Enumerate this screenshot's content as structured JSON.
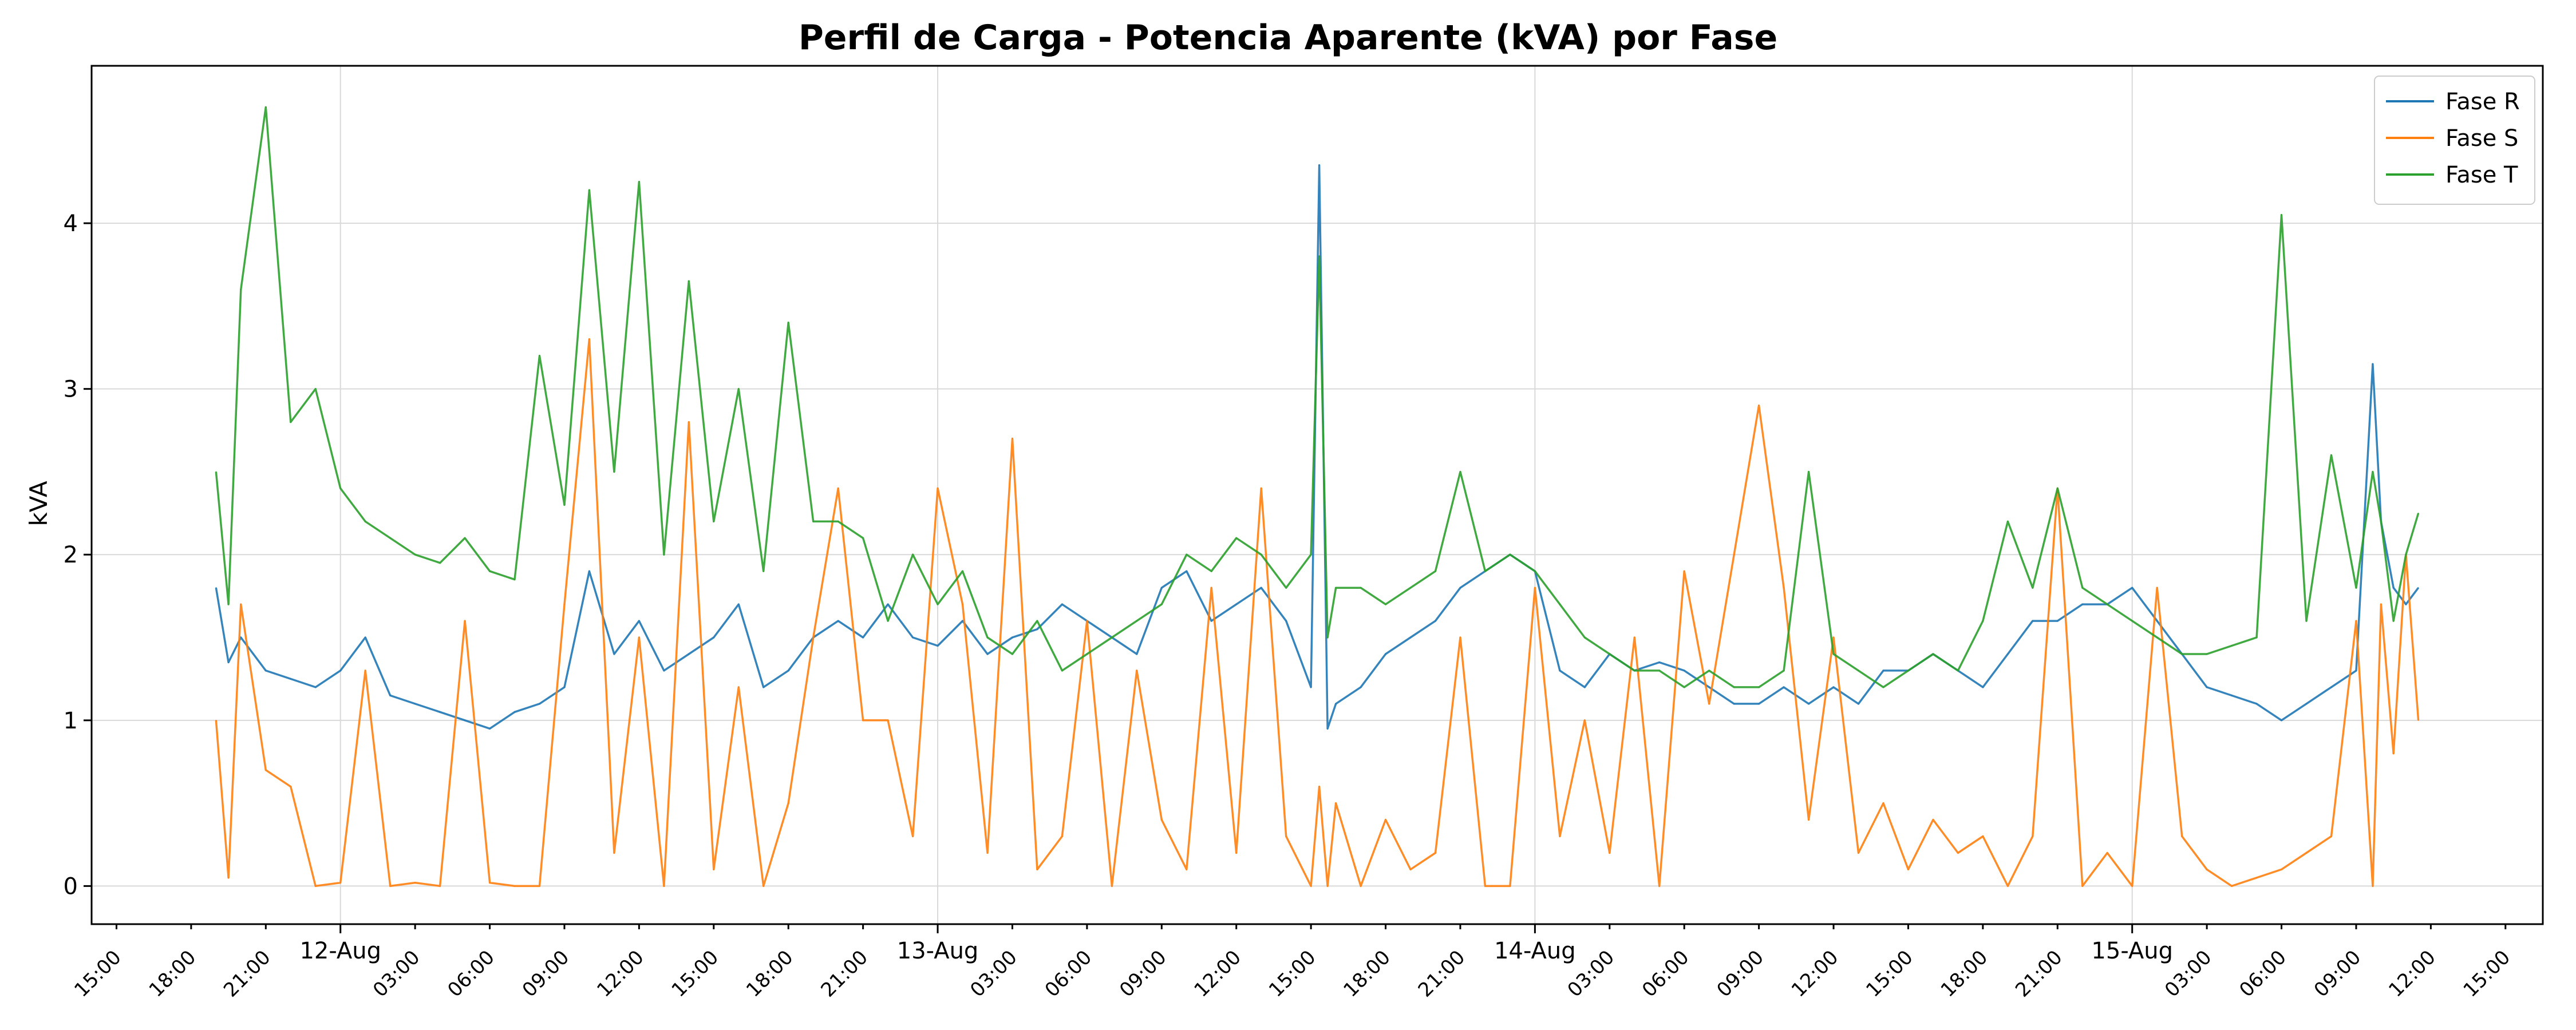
{
  "chart_data": {
    "type": "line",
    "title": "Perfil de Carga - Potencia Aparente (kVA) por Fase",
    "xlabel": "",
    "ylabel": "kVA",
    "ylim": [
      -0.23,
      4.95
    ],
    "xlim": [
      "2024-08-11 14:00",
      "2024-08-15 16:30"
    ],
    "yticks": [
      0,
      1,
      2,
      3,
      4
    ],
    "grid": true,
    "legend_position": "top-right",
    "day_ticks": [
      {
        "t": "2024-08-12 00:00",
        "label": "12-Aug"
      },
      {
        "t": "2024-08-13 00:00",
        "label": "13-Aug"
      },
      {
        "t": "2024-08-14 00:00",
        "label": "14-Aug"
      },
      {
        "t": "2024-08-15 00:00",
        "label": "15-Aug"
      }
    ],
    "hour_ticks": [
      {
        "t": "2024-08-11 15:00",
        "label": "15:00"
      },
      {
        "t": "2024-08-11 18:00",
        "label": "18:00"
      },
      {
        "t": "2024-08-11 21:00",
        "label": "21:00"
      },
      {
        "t": "2024-08-12 03:00",
        "label": "03:00"
      },
      {
        "t": "2024-08-12 06:00",
        "label": "06:00"
      },
      {
        "t": "2024-08-12 09:00",
        "label": "09:00"
      },
      {
        "t": "2024-08-12 12:00",
        "label": "12:00"
      },
      {
        "t": "2024-08-12 15:00",
        "label": "15:00"
      },
      {
        "t": "2024-08-12 18:00",
        "label": "18:00"
      },
      {
        "t": "2024-08-12 21:00",
        "label": "21:00"
      },
      {
        "t": "2024-08-13 03:00",
        "label": "03:00"
      },
      {
        "t": "2024-08-13 06:00",
        "label": "06:00"
      },
      {
        "t": "2024-08-13 09:00",
        "label": "09:00"
      },
      {
        "t": "2024-08-13 12:00",
        "label": "12:00"
      },
      {
        "t": "2024-08-13 15:00",
        "label": "15:00"
      },
      {
        "t": "2024-08-13 18:00",
        "label": "18:00"
      },
      {
        "t": "2024-08-13 21:00",
        "label": "21:00"
      },
      {
        "t": "2024-08-14 03:00",
        "label": "03:00"
      },
      {
        "t": "2024-08-14 06:00",
        "label": "06:00"
      },
      {
        "t": "2024-08-14 09:00",
        "label": "09:00"
      },
      {
        "t": "2024-08-14 12:00",
        "label": "12:00"
      },
      {
        "t": "2024-08-14 15:00",
        "label": "15:00"
      },
      {
        "t": "2024-08-14 18:00",
        "label": "18:00"
      },
      {
        "t": "2024-08-14 21:00",
        "label": "21:00"
      },
      {
        "t": "2024-08-15 03:00",
        "label": "03:00"
      },
      {
        "t": "2024-08-15 06:00",
        "label": "06:00"
      },
      {
        "t": "2024-08-15 09:00",
        "label": "09:00"
      },
      {
        "t": "2024-08-15 12:00",
        "label": "12:00"
      },
      {
        "t": "2024-08-15 15:00",
        "label": "15:00"
      }
    ],
    "series": [
      {
        "name": "Fase R",
        "color": "#1f77b4",
        "x": [
          "2024-08-11 19:00",
          "2024-08-11 19:30",
          "2024-08-11 20:00",
          "2024-08-11 21:00",
          "2024-08-11 22:00",
          "2024-08-11 23:00",
          "2024-08-12 00:00",
          "2024-08-12 01:00",
          "2024-08-12 02:00",
          "2024-08-12 03:00",
          "2024-08-12 04:00",
          "2024-08-12 05:00",
          "2024-08-12 06:00",
          "2024-08-12 07:00",
          "2024-08-12 08:00",
          "2024-08-12 09:00",
          "2024-08-12 10:00",
          "2024-08-12 11:00",
          "2024-08-12 12:00",
          "2024-08-12 13:00",
          "2024-08-12 14:00",
          "2024-08-12 15:00",
          "2024-08-12 16:00",
          "2024-08-12 17:00",
          "2024-08-12 18:00",
          "2024-08-12 19:00",
          "2024-08-12 20:00",
          "2024-08-12 21:00",
          "2024-08-12 22:00",
          "2024-08-12 23:00",
          "2024-08-13 00:00",
          "2024-08-13 01:00",
          "2024-08-13 02:00",
          "2024-08-13 03:00",
          "2024-08-13 04:00",
          "2024-08-13 05:00",
          "2024-08-13 06:00",
          "2024-08-13 07:00",
          "2024-08-13 08:00",
          "2024-08-13 09:00",
          "2024-08-13 10:00",
          "2024-08-13 11:00",
          "2024-08-13 12:00",
          "2024-08-13 13:00",
          "2024-08-13 14:00",
          "2024-08-13 15:00",
          "2024-08-13 15:20",
          "2024-08-13 15:40",
          "2024-08-13 16:00",
          "2024-08-13 17:00",
          "2024-08-13 18:00",
          "2024-08-13 19:00",
          "2024-08-13 20:00",
          "2024-08-13 21:00",
          "2024-08-13 22:00",
          "2024-08-13 23:00",
          "2024-08-14 00:00",
          "2024-08-14 01:00",
          "2024-08-14 02:00",
          "2024-08-14 03:00",
          "2024-08-14 04:00",
          "2024-08-14 05:00",
          "2024-08-14 06:00",
          "2024-08-14 07:00",
          "2024-08-14 08:00",
          "2024-08-14 09:00",
          "2024-08-14 10:00",
          "2024-08-14 11:00",
          "2024-08-14 12:00",
          "2024-08-14 13:00",
          "2024-08-14 14:00",
          "2024-08-14 15:00",
          "2024-08-14 16:00",
          "2024-08-14 17:00",
          "2024-08-14 18:00",
          "2024-08-14 19:00",
          "2024-08-14 20:00",
          "2024-08-14 21:00",
          "2024-08-14 22:00",
          "2024-08-14 23:00",
          "2024-08-15 00:00",
          "2024-08-15 01:00",
          "2024-08-15 02:00",
          "2024-08-15 03:00",
          "2024-08-15 04:00",
          "2024-08-15 05:00",
          "2024-08-15 06:00",
          "2024-08-15 07:00",
          "2024-08-15 08:00",
          "2024-08-15 09:00",
          "2024-08-15 09:40",
          "2024-08-15 10:00",
          "2024-08-15 10:30",
          "2024-08-15 11:00",
          "2024-08-15 11:30"
        ],
        "y": [
          1.8,
          1.35,
          1.5,
          1.3,
          1.25,
          1.2,
          1.3,
          1.5,
          1.15,
          1.1,
          1.05,
          1.0,
          0.95,
          1.05,
          1.1,
          1.2,
          1.9,
          1.4,
          1.6,
          1.3,
          1.4,
          1.5,
          1.7,
          1.2,
          1.3,
          1.5,
          1.6,
          1.5,
          1.7,
          1.5,
          1.45,
          1.6,
          1.4,
          1.5,
          1.55,
          1.7,
          1.6,
          1.5,
          1.4,
          1.8,
          1.9,
          1.6,
          1.7,
          1.8,
          1.6,
          1.2,
          4.35,
          0.95,
          1.1,
          1.2,
          1.4,
          1.5,
          1.6,
          1.8,
          1.9,
          2.0,
          1.9,
          1.3,
          1.2,
          1.4,
          1.3,
          1.35,
          1.3,
          1.2,
          1.1,
          1.1,
          1.2,
          1.1,
          1.2,
          1.1,
          1.3,
          1.3,
          1.4,
          1.3,
          1.2,
          1.4,
          1.6,
          1.6,
          1.7,
          1.7,
          1.8,
          1.6,
          1.4,
          1.2,
          1.15,
          1.1,
          1.0,
          1.1,
          1.2,
          1.3,
          3.15,
          2.2,
          1.8,
          1.7,
          1.8
        ]
      },
      {
        "name": "Fase S",
        "color": "#ff7f0e",
        "x": [
          "2024-08-11 19:00",
          "2024-08-11 19:30",
          "2024-08-11 20:00",
          "2024-08-11 21:00",
          "2024-08-11 22:00",
          "2024-08-11 23:00",
          "2024-08-12 00:00",
          "2024-08-12 01:00",
          "2024-08-12 02:00",
          "2024-08-12 03:00",
          "2024-08-12 04:00",
          "2024-08-12 05:00",
          "2024-08-12 06:00",
          "2024-08-12 07:00",
          "2024-08-12 08:00",
          "2024-08-12 09:00",
          "2024-08-12 10:00",
          "2024-08-12 11:00",
          "2024-08-12 12:00",
          "2024-08-12 13:00",
          "2024-08-12 14:00",
          "2024-08-12 15:00",
          "2024-08-12 16:00",
          "2024-08-12 17:00",
          "2024-08-12 18:00",
          "2024-08-12 19:00",
          "2024-08-12 20:00",
          "2024-08-12 21:00",
          "2024-08-12 22:00",
          "2024-08-12 23:00",
          "2024-08-13 00:00",
          "2024-08-13 01:00",
          "2024-08-13 02:00",
          "2024-08-13 03:00",
          "2024-08-13 04:00",
          "2024-08-13 05:00",
          "2024-08-13 06:00",
          "2024-08-13 07:00",
          "2024-08-13 08:00",
          "2024-08-13 09:00",
          "2024-08-13 10:00",
          "2024-08-13 11:00",
          "2024-08-13 12:00",
          "2024-08-13 13:00",
          "2024-08-13 14:00",
          "2024-08-13 15:00",
          "2024-08-13 15:20",
          "2024-08-13 15:40",
          "2024-08-13 16:00",
          "2024-08-13 17:00",
          "2024-08-13 18:00",
          "2024-08-13 19:00",
          "2024-08-13 20:00",
          "2024-08-13 21:00",
          "2024-08-13 22:00",
          "2024-08-13 23:00",
          "2024-08-14 00:00",
          "2024-08-14 01:00",
          "2024-08-14 02:00",
          "2024-08-14 03:00",
          "2024-08-14 04:00",
          "2024-08-14 05:00",
          "2024-08-14 06:00",
          "2024-08-14 07:00",
          "2024-08-14 08:00",
          "2024-08-14 09:00",
          "2024-08-14 10:00",
          "2024-08-14 11:00",
          "2024-08-14 12:00",
          "2024-08-14 13:00",
          "2024-08-14 14:00",
          "2024-08-14 15:00",
          "2024-08-14 16:00",
          "2024-08-14 17:00",
          "2024-08-14 18:00",
          "2024-08-14 19:00",
          "2024-08-14 20:00",
          "2024-08-14 21:00",
          "2024-08-14 22:00",
          "2024-08-14 23:00",
          "2024-08-15 00:00",
          "2024-08-15 01:00",
          "2024-08-15 02:00",
          "2024-08-15 03:00",
          "2024-08-15 04:00",
          "2024-08-15 05:00",
          "2024-08-15 06:00",
          "2024-08-15 07:00",
          "2024-08-15 08:00",
          "2024-08-15 09:00",
          "2024-08-15 09:40",
          "2024-08-15 10:00",
          "2024-08-15 10:30",
          "2024-08-15 11:00",
          "2024-08-15 11:30"
        ],
        "y": [
          1.0,
          0.05,
          1.7,
          0.7,
          0.6,
          0.0,
          0.02,
          1.3,
          0.0,
          0.02,
          0.0,
          1.6,
          0.02,
          0.0,
          0.0,
          1.7,
          3.3,
          0.2,
          1.5,
          0.0,
          2.8,
          0.1,
          1.2,
          0.0,
          0.5,
          1.5,
          2.4,
          1.0,
          1.0,
          0.3,
          2.4,
          1.7,
          0.2,
          2.7,
          0.1,
          0.3,
          1.6,
          0.0,
          1.3,
          0.4,
          0.1,
          1.8,
          0.2,
          2.4,
          0.3,
          0.0,
          0.6,
          0.0,
          0.5,
          0.0,
          0.4,
          0.1,
          0.2,
          1.5,
          0.0,
          0.0,
          1.8,
          0.3,
          1.0,
          0.2,
          1.5,
          0.0,
          1.9,
          1.1,
          2.0,
          2.9,
          1.8,
          0.4,
          1.5,
          0.2,
          0.5,
          0.1,
          0.4,
          0.2,
          0.3,
          0.0,
          0.3,
          2.4,
          0.0,
          0.2,
          0.0,
          1.8,
          0.3,
          0.1,
          0.0,
          0.05,
          0.1,
          0.2,
          0.3,
          1.6,
          0.0,
          1.7,
          0.8,
          2.0,
          1.0
        ]
      },
      {
        "name": "Fase T",
        "color": "#2ca02c",
        "x": [
          "2024-08-11 19:00",
          "2024-08-11 19:30",
          "2024-08-11 20:00",
          "2024-08-11 21:00",
          "2024-08-11 22:00",
          "2024-08-11 23:00",
          "2024-08-12 00:00",
          "2024-08-12 01:00",
          "2024-08-12 02:00",
          "2024-08-12 03:00",
          "2024-08-12 04:00",
          "2024-08-12 05:00",
          "2024-08-12 06:00",
          "2024-08-12 07:00",
          "2024-08-12 08:00",
          "2024-08-12 09:00",
          "2024-08-12 10:00",
          "2024-08-12 11:00",
          "2024-08-12 12:00",
          "2024-08-12 13:00",
          "2024-08-12 14:00",
          "2024-08-12 15:00",
          "2024-08-12 16:00",
          "2024-08-12 17:00",
          "2024-08-12 18:00",
          "2024-08-12 19:00",
          "2024-08-12 20:00",
          "2024-08-12 21:00",
          "2024-08-12 22:00",
          "2024-08-12 23:00",
          "2024-08-13 00:00",
          "2024-08-13 01:00",
          "2024-08-13 02:00",
          "2024-08-13 03:00",
          "2024-08-13 04:00",
          "2024-08-13 05:00",
          "2024-08-13 06:00",
          "2024-08-13 07:00",
          "2024-08-13 08:00",
          "2024-08-13 09:00",
          "2024-08-13 10:00",
          "2024-08-13 11:00",
          "2024-08-13 12:00",
          "2024-08-13 13:00",
          "2024-08-13 14:00",
          "2024-08-13 15:00",
          "2024-08-13 15:20",
          "2024-08-13 15:40",
          "2024-08-13 16:00",
          "2024-08-13 17:00",
          "2024-08-13 18:00",
          "2024-08-13 19:00",
          "2024-08-13 20:00",
          "2024-08-13 21:00",
          "2024-08-13 22:00",
          "2024-08-13 23:00",
          "2024-08-14 00:00",
          "2024-08-14 01:00",
          "2024-08-14 02:00",
          "2024-08-14 03:00",
          "2024-08-14 04:00",
          "2024-08-14 05:00",
          "2024-08-14 06:00",
          "2024-08-14 07:00",
          "2024-08-14 08:00",
          "2024-08-14 09:00",
          "2024-08-14 10:00",
          "2024-08-14 11:00",
          "2024-08-14 12:00",
          "2024-08-14 13:00",
          "2024-08-14 14:00",
          "2024-08-14 15:00",
          "2024-08-14 16:00",
          "2024-08-14 17:00",
          "2024-08-14 18:00",
          "2024-08-14 19:00",
          "2024-08-14 20:00",
          "2024-08-14 21:00",
          "2024-08-14 22:00",
          "2024-08-14 23:00",
          "2024-08-15 00:00",
          "2024-08-15 01:00",
          "2024-08-15 02:00",
          "2024-08-15 03:00",
          "2024-08-15 04:00",
          "2024-08-15 05:00",
          "2024-08-15 06:00",
          "2024-08-15 07:00",
          "2024-08-15 08:00",
          "2024-08-15 09:00",
          "2024-08-15 09:40",
          "2024-08-15 10:00",
          "2024-08-15 10:30",
          "2024-08-15 11:00",
          "2024-08-15 11:30"
        ],
        "y": [
          2.5,
          1.7,
          3.6,
          4.7,
          2.8,
          3.0,
          2.4,
          2.2,
          2.1,
          2.0,
          1.95,
          2.1,
          1.9,
          1.85,
          3.2,
          2.3,
          4.2,
          2.5,
          4.25,
          2.0,
          3.65,
          2.2,
          3.0,
          1.9,
          3.4,
          2.2,
          2.2,
          2.1,
          1.6,
          2.0,
          1.7,
          1.9,
          1.5,
          1.4,
          1.6,
          1.3,
          1.4,
          1.5,
          1.6,
          1.7,
          2.0,
          1.9,
          2.1,
          2.0,
          1.8,
          2.0,
          3.8,
          1.5,
          1.8,
          1.8,
          1.7,
          1.8,
          1.9,
          2.5,
          1.9,
          2.0,
          1.9,
          1.7,
          1.5,
          1.4,
          1.3,
          1.3,
          1.2,
          1.3,
          1.2,
          1.2,
          1.3,
          2.5,
          1.4,
          1.3,
          1.2,
          1.3,
          1.4,
          1.3,
          1.6,
          2.2,
          1.8,
          2.4,
          1.8,
          1.7,
          1.6,
          1.5,
          1.4,
          1.4,
          1.45,
          1.5,
          4.05,
          1.6,
          2.6,
          1.8,
          2.5,
          2.2,
          1.6,
          2.0,
          2.25
        ]
      }
    ]
  }
}
